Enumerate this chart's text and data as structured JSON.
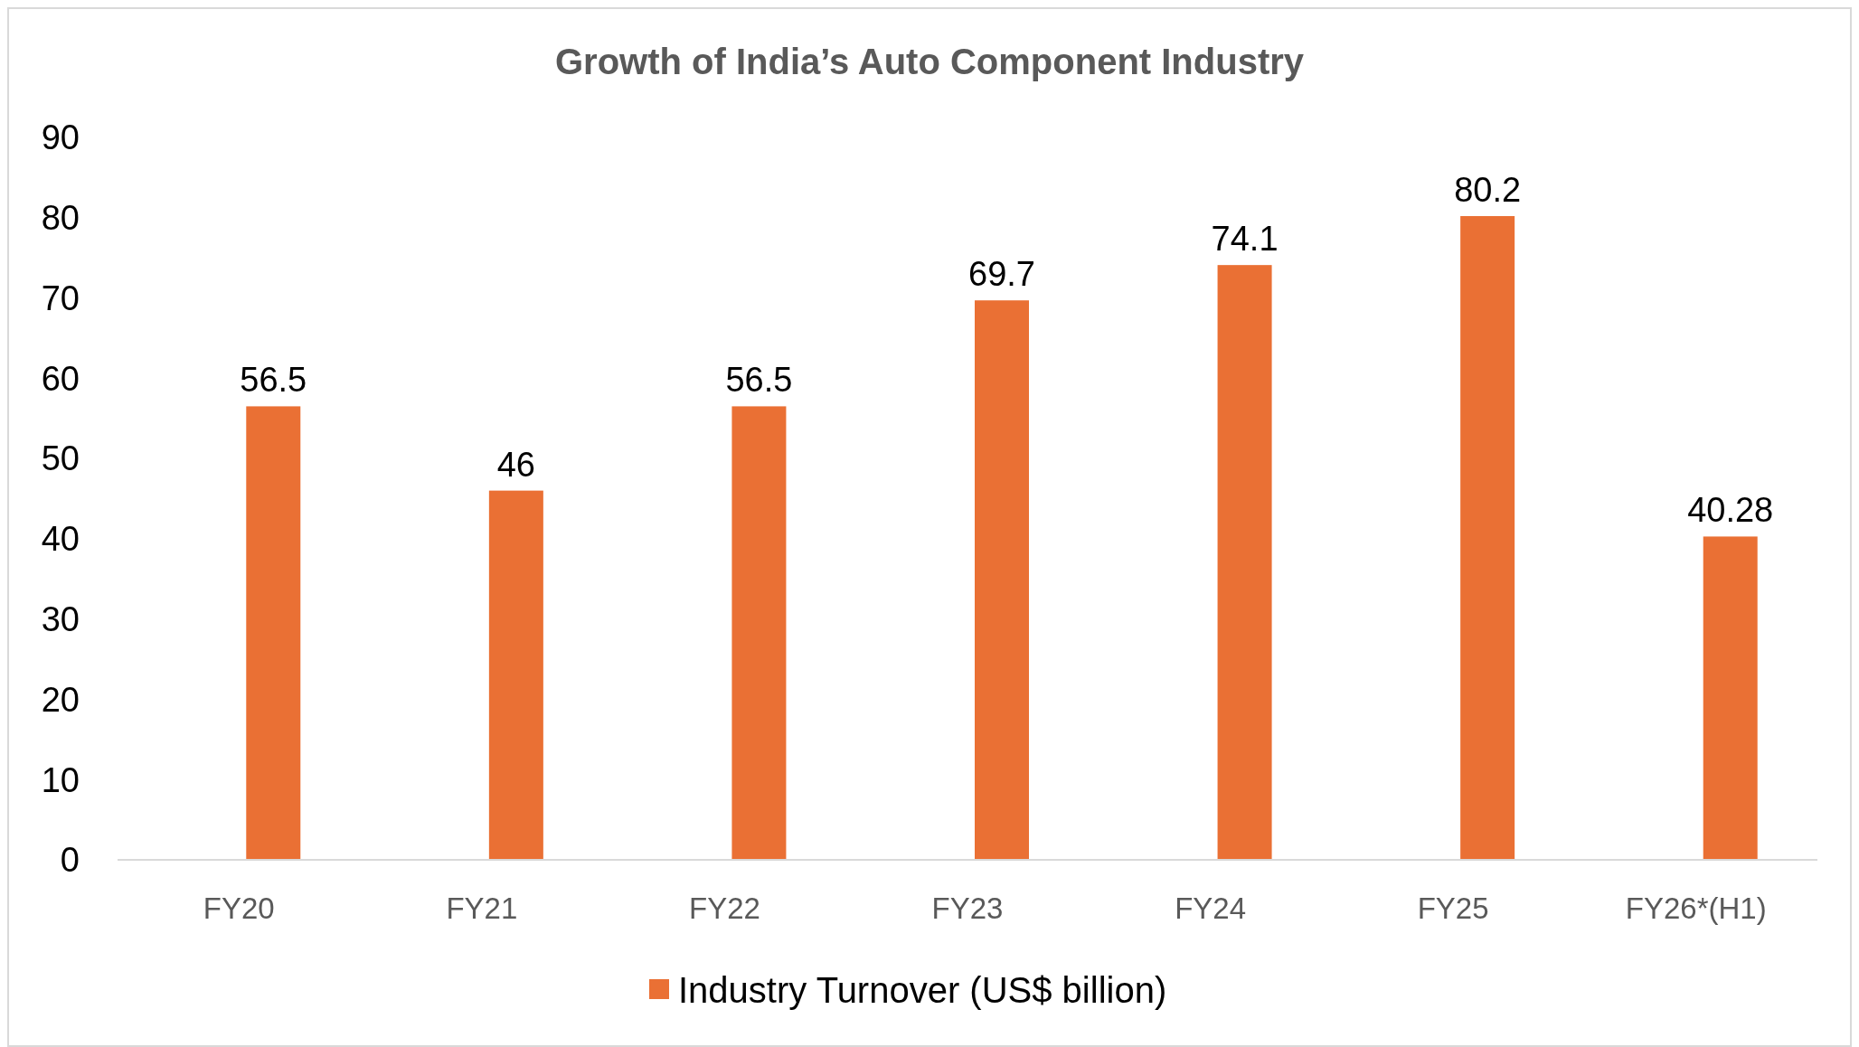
{
  "chart_data": {
    "type": "bar",
    "title": "Growth of India’s Auto Component Industry",
    "categories": [
      "FY20",
      "FY21",
      "FY22",
      "FY23",
      "FY24",
      "FY25",
      "FY26*(H1)"
    ],
    "series": [
      {
        "name": "Industry Turnover (US$ billion)",
        "color": "#ea7034",
        "values": [
          56.5,
          46,
          56.5,
          69.7,
          74.1,
          80.2,
          40.28
        ]
      }
    ],
    "ylim": [
      0,
      90
    ],
    "yticks": [
      0,
      10,
      20,
      30,
      40,
      50,
      60,
      70,
      80,
      90
    ],
    "grid": false,
    "legend": "bottom",
    "data_labels": true
  }
}
